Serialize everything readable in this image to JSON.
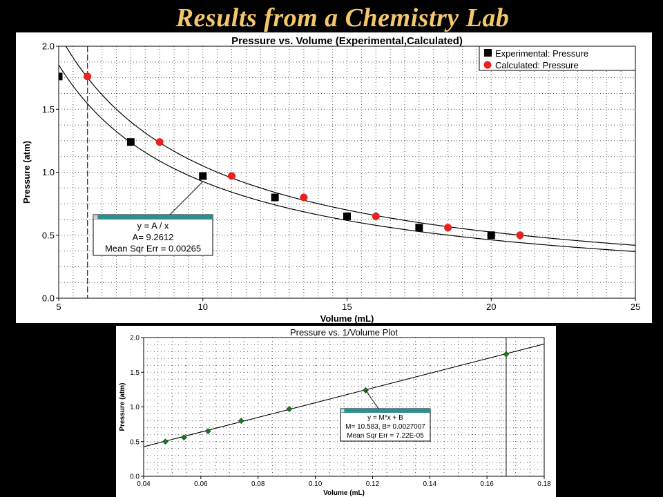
{
  "slide": {
    "title": "Results from a Chemistry Lab"
  },
  "chart_data": [
    {
      "type": "scatter",
      "title": "Pressure vs. Volume (Experimental,Calculated)",
      "xlabel": "Volume (mL)",
      "ylabel": "Pressure (atm)",
      "xlim": [
        5,
        25
      ],
      "ylim": [
        0.0,
        2.0
      ],
      "xticks": [
        "5",
        "10",
        "15",
        "20",
        "25"
      ],
      "yticks": [
        "0.0",
        "0.5",
        "1.0",
        "1.5",
        "2.0"
      ],
      "grid": true,
      "legend": "top-right",
      "cursor_x": 6,
      "series": [
        {
          "name": "Experimental: Pressure",
          "marker": "square",
          "color": "#000000",
          "x": [
            5,
            7.5,
            10,
            12.5,
            15,
            17.5,
            20
          ],
          "y": [
            1.76,
            1.24,
            0.97,
            0.8,
            0.65,
            0.56,
            0.5
          ]
        },
        {
          "name": "Calculated: Pressure",
          "marker": "circle",
          "color": "#e8221c",
          "x": [
            6,
            8.5,
            11,
            13.5,
            16,
            18.5,
            21
          ],
          "y": [
            1.76,
            1.24,
            0.97,
            0.8,
            0.65,
            0.56,
            0.5
          ]
        }
      ],
      "fit_curves": [
        {
          "A": 9.2612
        },
        {
          "A": 10.5
        }
      ],
      "fit_box": {
        "equation": "y = A / x",
        "param": "A= 9.2612",
        "error": "Mean Sqr Err = 0.00265",
        "anchor": [
          10,
          0.926
        ]
      }
    },
    {
      "type": "scatter",
      "title": "Pressure vs. 1/Volume Plot",
      "xlabel": "Volume (mL)",
      "ylabel": "Pressure (atm)",
      "xlim": [
        0.04,
        0.18
      ],
      "ylim": [
        0.0,
        2.0
      ],
      "xticks": [
        "0.04",
        "0.06",
        "0.08",
        "0.10",
        "0.12",
        "0.14",
        "0.16",
        "0.18"
      ],
      "yticks": [
        "0.0",
        "0.5",
        "1.0",
        "1.5",
        "2.0"
      ],
      "grid": true,
      "cursor_x": 0.1667,
      "series": [
        {
          "name": "",
          "marker": "diamond",
          "color": "#1f7a1f",
          "x": [
            0.0476,
            0.0541,
            0.0625,
            0.0741,
            0.0909,
            0.1176,
            0.1667
          ],
          "y": [
            0.5,
            0.56,
            0.65,
            0.8,
            0.97,
            1.24,
            1.76
          ]
        }
      ],
      "fit_line": {
        "M": 10.583,
        "B": 0.0027007
      },
      "fit_box": {
        "equation": "y = M*x + B",
        "param": "M= 10.583,  B= 0.0027007",
        "error": "Mean Sqr Err = 7.22E-05",
        "anchor": [
          0.1176,
          1.24
        ]
      }
    }
  ]
}
